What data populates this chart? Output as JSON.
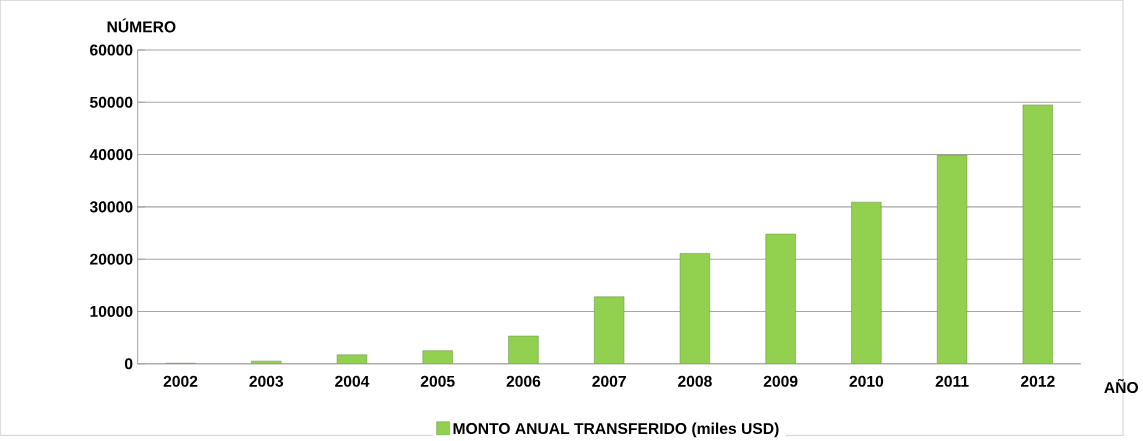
{
  "chart_data": {
    "type": "bar",
    "xlabel": "AÑO",
    "ylabel": "NÚMERO",
    "categories": [
      "2002",
      "2003",
      "2004",
      "2005",
      "2006",
      "2007",
      "2008",
      "2009",
      "2010",
      "2011",
      "2012"
    ],
    "series": [
      {
        "name": "MONTO ANUAL TRANSFERIDO (miles USD)",
        "color": "#92d050",
        "values": [
          100,
          500,
          1700,
          2500,
          5300,
          12800,
          21100,
          24800,
          30900,
          39900,
          49500
        ]
      }
    ],
    "ylim": [
      0,
      60000
    ],
    "yticks": [
      0,
      10000,
      20000,
      30000,
      40000,
      50000,
      60000
    ],
    "grid": "y",
    "legend": "bottom"
  }
}
